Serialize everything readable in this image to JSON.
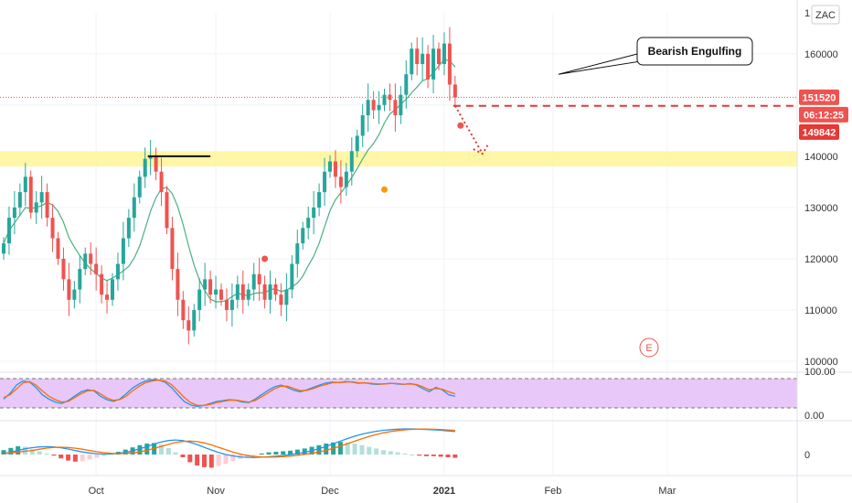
{
  "symbol": "ZAC",
  "colors": {
    "up": "#26a69a",
    "down": "#ef5350",
    "ma": "#4caf82",
    "zone": "#fff59d",
    "stoch_fill": "#e8c8f8",
    "k_line": "#2196f3",
    "d_line": "#ff6d00",
    "price_line": "#ef5350",
    "target_badge": "#e53935"
  },
  "chart_data": {
    "type": "candlestick",
    "title": "",
    "x_labels": [
      "Oct",
      "Nov",
      "Dec",
      "2021",
      "Feb",
      "Mar"
    ],
    "x_label_index": [
      17,
      39,
      60,
      81,
      101,
      122
    ],
    "y_ticks": [
      100000,
      110000,
      120000,
      130000,
      140000,
      150000,
      160000
    ],
    "y_tick_labels": [
      "100000",
      "110000",
      "120000",
      "130000",
      "140000",
      "",
      "160000"
    ],
    "ylim": [
      100000,
      168000
    ],
    "candles_close": [
      123000,
      128000,
      130000,
      133000,
      136000,
      129000,
      131000,
      133000,
      128000,
      124000,
      120000,
      116000,
      112000,
      114000,
      118000,
      121000,
      119000,
      117000,
      113000,
      112000,
      116000,
      119000,
      124000,
      128000,
      132000,
      136000,
      139500,
      140000,
      137000,
      133000,
      126000,
      118000,
      112000,
      108000,
      106000,
      110000,
      114000,
      116000,
      113000,
      114000,
      112000,
      110000,
      112000,
      115000,
      112000,
      114000,
      117000,
      115000,
      112000,
      115000,
      113000,
      111000,
      114000,
      119000,
      123000,
      126000,
      128000,
      130000,
      133000,
      137000,
      139000,
      136000,
      134000,
      137000,
      141000,
      144000,
      148000,
      151000,
      149000,
      150000,
      152000,
      151000,
      148000,
      152000,
      156000,
      161000,
      158000,
      160000,
      155000,
      161000,
      158000,
      162000,
      154000,
      151520
    ],
    "series": [
      {
        "name": "",
        "kind": "stochastic_k",
        "values": [
          30,
          50,
          78,
          92,
          88,
          70,
          45,
          30,
          20,
          15,
          25,
          40,
          55,
          62,
          58,
          40,
          28,
          22,
          30,
          48,
          68,
          82,
          92,
          96,
          95,
          88,
          70,
          45,
          22,
          10,
          5,
          8,
          15,
          22,
          25,
          28,
          26,
          20,
          18,
          30,
          45,
          60,
          72,
          78,
          70,
          60,
          55,
          62,
          70,
          78,
          85,
          88,
          86,
          90,
          88,
          84,
          86,
          82,
          80,
          82,
          84,
          82,
          80,
          83,
          78,
          66,
          55,
          70,
          62,
          45,
          40
        ]
      },
      {
        "name": "",
        "kind": "stochastic_d",
        "values": [
          35,
          45,
          65,
          85,
          90,
          78,
          58,
          40,
          28,
          20,
          22,
          35,
          48,
          58,
          60,
          48,
          34,
          26,
          28,
          40,
          58,
          74,
          86,
          92,
          95,
          92,
          80,
          58,
          36,
          18,
          9,
          8,
          12,
          18,
          22,
          26,
          27,
          23,
          20,
          25,
          38,
          52,
          65,
          74,
          74,
          66,
          59,
          60,
          66,
          74,
          80,
          86,
          87,
          88,
          89,
          86,
          85,
          84,
          82,
          82,
          83,
          83,
          81,
          82,
          80,
          72,
          62,
          66,
          64,
          55,
          48
        ]
      },
      {
        "name": "",
        "kind": "macd_histogram",
        "values": [
          800,
          1200,
          1500,
          1400,
          1000,
          600,
          200,
          -200,
          -700,
          -1100,
          -1300,
          -1200,
          -900,
          -600,
          -300,
          100,
          500,
          900,
          1300,
          1700,
          2000,
          2100,
          1800,
          1200,
          400,
          -500,
          -1400,
          -2000,
          -2300,
          -2400,
          -2100,
          -1700,
          -1200,
          -800,
          -400,
          -100,
          200,
          400,
          500,
          600,
          700,
          900,
          1100,
          1400,
          1700,
          2000,
          2200,
          2300,
          2200,
          2000,
          1700,
          1400,
          1100,
          800,
          600,
          400,
          200,
          0,
          -200,
          -300,
          -300,
          -400,
          -500,
          -600
        ]
      }
    ],
    "stoch_levels": [
      "100.00",
      "0.00"
    ],
    "macd_zero_label": "0",
    "zone_range": [
      138000,
      141000
    ],
    "resistance_level": 140000,
    "last_price": 151520,
    "target_price": 149842,
    "countdown": "06:12:25",
    "top_partial_label": "1",
    "markers": [
      {
        "type": "dot",
        "index": 48,
        "price": 120000,
        "color": "#ef5350"
      },
      {
        "type": "dot",
        "index": 70,
        "price": 133500,
        "color": "#ff9800"
      },
      {
        "type": "dot",
        "index": 84,
        "price": 146000,
        "color": "#ef5350"
      }
    ],
    "annotations": [
      {
        "text": "Bearish Engulfing",
        "index": 102,
        "price": 156000
      }
    ],
    "event_marker": "E"
  }
}
